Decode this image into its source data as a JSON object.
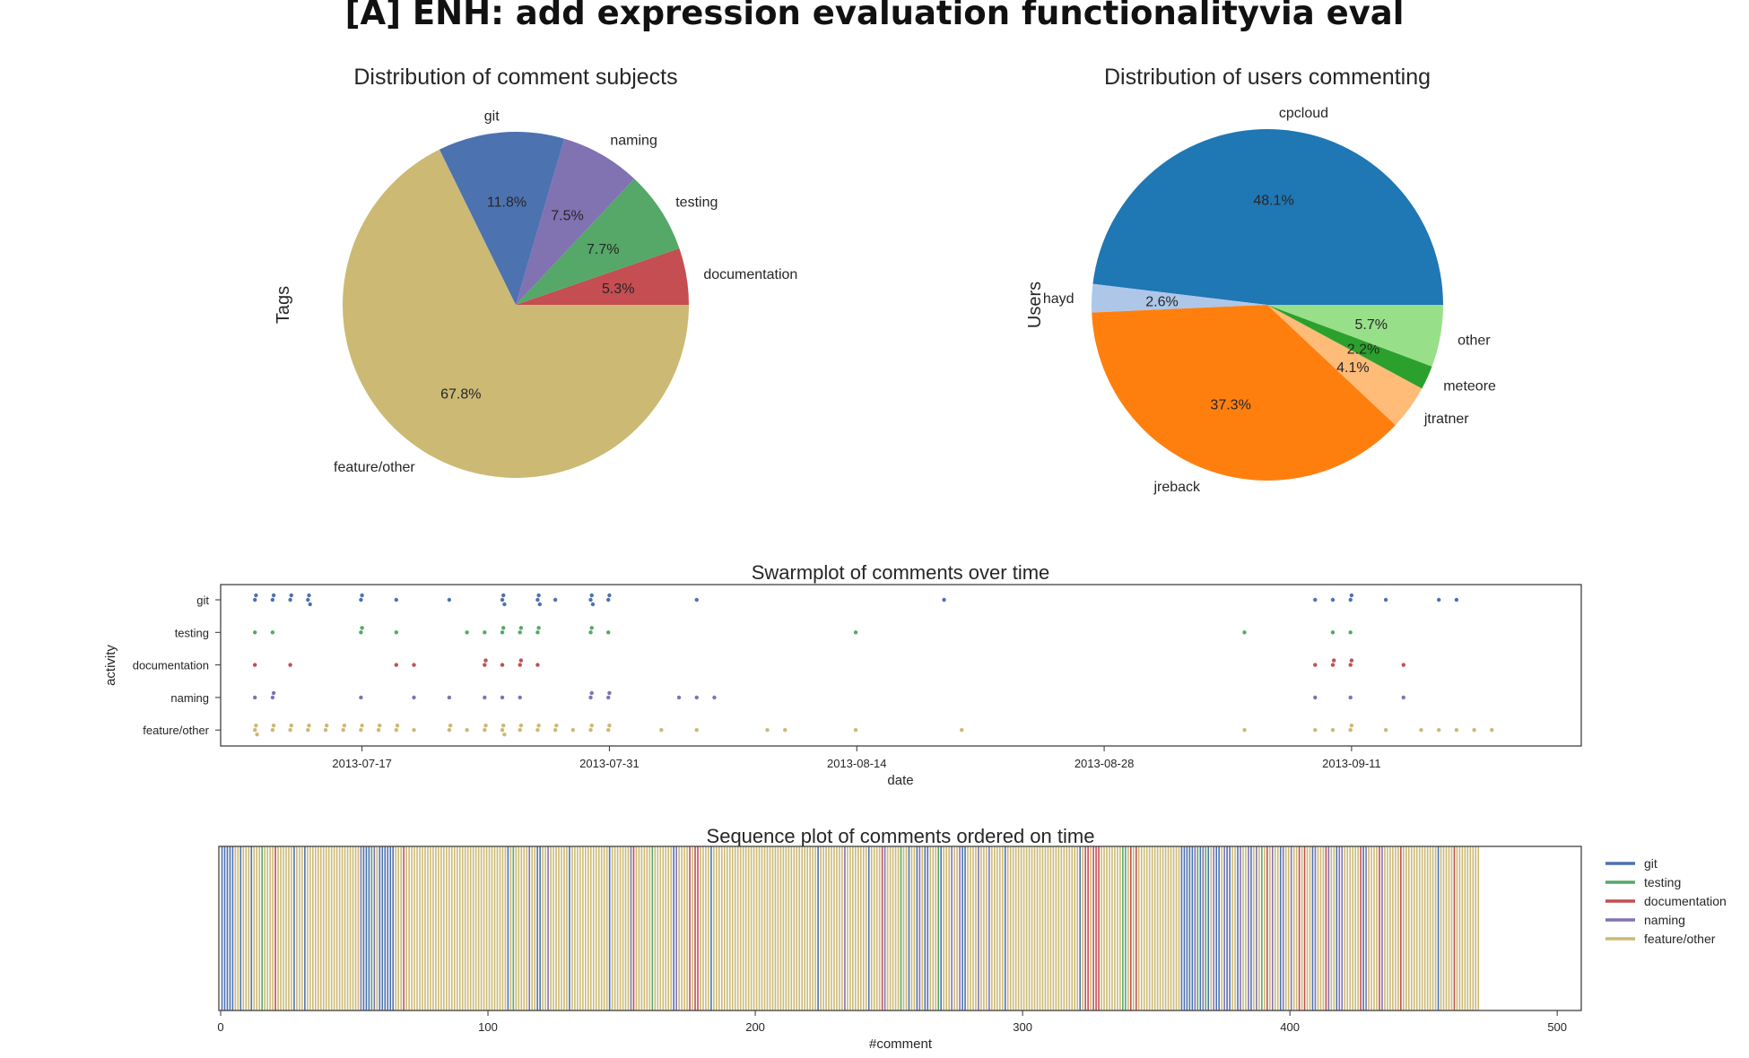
{
  "figure_title": "[A] ENH: add expression evaluation functionalityvia eval",
  "colors": {
    "git": "#4C72B0",
    "testing": "#55A868",
    "documentation": "#C44E52",
    "naming": "#8172B2",
    "feature_other": "#CCB974"
  },
  "chart_data": [
    {
      "type": "pie",
      "title": "Distribution of comment subjects",
      "ylabel": "Tags",
      "labels": [
        "documentation",
        "testing",
        "naming",
        "git",
        "feature/other"
      ],
      "pct_labels": [
        "5.3%",
        "7.7%",
        "7.5%",
        "11.8%",
        "67.8%"
      ],
      "values": [
        5.3,
        7.7,
        7.5,
        11.8,
        67.8
      ],
      "colors": [
        "#C44E52",
        "#55A868",
        "#8172B2",
        "#4C72B0",
        "#CCB974"
      ]
    },
    {
      "type": "pie",
      "title": "Distribution of users commenting",
      "ylabel": "Users",
      "labels": [
        "cpcloud",
        "hayd",
        "jreback",
        "jtratner",
        "meteore",
        "other"
      ],
      "pct_labels": [
        "48.1%",
        "2.6%",
        "37.3%",
        "4.1%",
        "2.2%",
        "5.7%"
      ],
      "values": [
        48.1,
        2.6,
        37.3,
        4.1,
        2.2,
        5.7
      ],
      "colors": [
        "#1F77B4",
        "#AEC7E8",
        "#FF7F0E",
        "#FFBB78",
        "#2CA02C",
        "#98DF8A"
      ]
    },
    {
      "type": "scatter",
      "title": "Swarmplot of comments over time",
      "xlabel": "date",
      "ylabel": "activity",
      "categories": [
        "git",
        "testing",
        "documentation",
        "naming",
        "feature/other"
      ],
      "xticks": [
        "2013-07-17",
        "2013-07-31",
        "2013-08-14",
        "2013-08-28",
        "2013-09-11"
      ],
      "xlim": [
        "2013-07-09",
        "2013-09-24"
      ],
      "series": [
        {
          "name": "git",
          "x": [
            "2013-07-11",
            "2013-07-11",
            "2013-07-12",
            "2013-07-12",
            "2013-07-13",
            "2013-07-13",
            "2013-07-14",
            "2013-07-14",
            "2013-07-14",
            "2013-07-17",
            "2013-07-17",
            "2013-07-19",
            "2013-07-22",
            "2013-07-25",
            "2013-07-25",
            "2013-07-25",
            "2013-07-27",
            "2013-07-27",
            "2013-07-27",
            "2013-07-28",
            "2013-07-30",
            "2013-07-30",
            "2013-07-30",
            "2013-07-31",
            "2013-07-31",
            "2013-08-05",
            "2013-08-19",
            "2013-09-09",
            "2013-09-10",
            "2013-09-11",
            "2013-09-11",
            "2013-09-13",
            "2013-09-16",
            "2013-09-17"
          ]
        },
        {
          "name": "testing",
          "x": [
            "2013-07-11",
            "2013-07-12",
            "2013-07-17",
            "2013-07-17",
            "2013-07-19",
            "2013-07-23",
            "2013-07-24",
            "2013-07-25",
            "2013-07-25",
            "2013-07-26",
            "2013-07-26",
            "2013-07-27",
            "2013-07-27",
            "2013-07-30",
            "2013-07-30",
            "2013-07-31",
            "2013-08-14",
            "2013-09-05",
            "2013-09-10",
            "2013-09-11"
          ]
        },
        {
          "name": "documentation",
          "x": [
            "2013-07-11",
            "2013-07-13",
            "2013-07-19",
            "2013-07-20",
            "2013-07-24",
            "2013-07-24",
            "2013-07-25",
            "2013-07-26",
            "2013-07-26",
            "2013-07-27",
            "2013-09-09",
            "2013-09-10",
            "2013-09-10",
            "2013-09-11",
            "2013-09-11",
            "2013-09-14"
          ]
        },
        {
          "name": "naming",
          "x": [
            "2013-07-11",
            "2013-07-12",
            "2013-07-12",
            "2013-07-17",
            "2013-07-20",
            "2013-07-22",
            "2013-07-24",
            "2013-07-25",
            "2013-07-26",
            "2013-07-30",
            "2013-07-30",
            "2013-07-31",
            "2013-07-31",
            "2013-08-04",
            "2013-08-05",
            "2013-08-06",
            "2013-09-09",
            "2013-09-11",
            "2013-09-14"
          ]
        },
        {
          "name": "feature/other",
          "x": [
            "2013-07-11",
            "2013-07-11",
            "2013-07-11",
            "2013-07-12",
            "2013-07-12",
            "2013-07-13",
            "2013-07-13",
            "2013-07-14",
            "2013-07-14",
            "2013-07-15",
            "2013-07-15",
            "2013-07-16",
            "2013-07-16",
            "2013-07-17",
            "2013-07-17",
            "2013-07-18",
            "2013-07-18",
            "2013-07-19",
            "2013-07-19",
            "2013-07-20",
            "2013-07-22",
            "2013-07-22",
            "2013-07-23",
            "2013-07-24",
            "2013-07-24",
            "2013-07-25",
            "2013-07-25",
            "2013-07-25",
            "2013-07-26",
            "2013-07-26",
            "2013-07-27",
            "2013-07-27",
            "2013-07-28",
            "2013-07-28",
            "2013-07-29",
            "2013-07-30",
            "2013-07-30",
            "2013-07-31",
            "2013-07-31",
            "2013-08-03",
            "2013-08-05",
            "2013-08-09",
            "2013-08-10",
            "2013-08-14",
            "2013-08-20",
            "2013-09-05",
            "2013-09-09",
            "2013-09-10",
            "2013-09-11",
            "2013-09-11",
            "2013-09-13",
            "2013-09-15",
            "2013-09-16",
            "2013-09-17",
            "2013-09-18",
            "2013-09-19"
          ]
        }
      ]
    },
    {
      "type": "heatmap",
      "title": "Sequence plot of comments ordered on time",
      "xlabel": "#comment",
      "xticks": [
        0,
        100,
        200,
        300,
        400,
        500
      ],
      "xlim": [
        0,
        509
      ],
      "legend": [
        "git",
        "testing",
        "documentation",
        "naming",
        "feature/other"
      ],
      "legend_position": "right",
      "sequence": "GGGGGFFGFFFGFFFTFFFFDFFFFFFGFFFGFFFFFFFFFFFFFFFFFFFFNGGGTNFGGGGGGFFFDFFFFFFFFFFFFFFFFFFFFFFFFFFFFFFFFFFFFFFGFTFFFFFNFFGGFFNFFFFFFFGFFFFFFFFFFFFFFGFFFFFFFNDFFFFFFTFFFFFFFGNFFFFDFDDFFFFGFFFFFFFFFFFFFFFFFFFFFFFFFFFFFFFFFFFFFFFGFFFFFFFFFNFFFFFFFFGFFFFDNFFFFFTFFGFFGNFGGFFFTGFFFNFFNGGFFFFNFFFNFFFFFGFFFFFFFFFFFFFFFFFFFFFFFFFFFGFDDFDDDFFFFFFFFTTFDFDFFFFFFFFFFFFFFFFGGGGGNTGNTGFNGGFNGGFFGNFFNGFNFTFDFNFFGNFFNFFDFDFFGNFFFDNFFGNNFFFFFFDGNFFFFDNFFFFFFDFFFFFFFFFFFFFGFFFFFDFFFFFFFFF"
    }
  ]
}
